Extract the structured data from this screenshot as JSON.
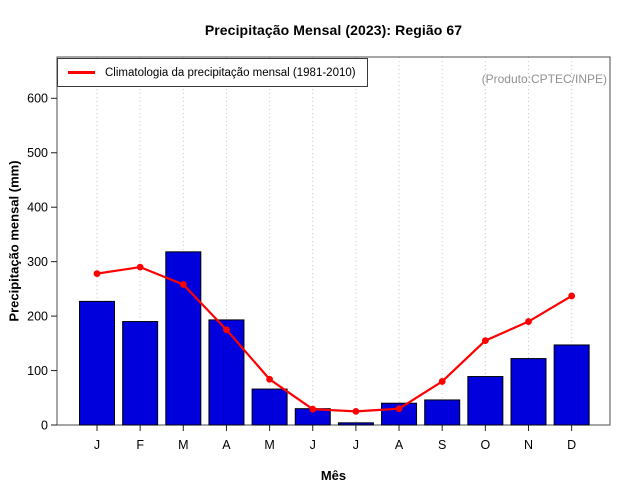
{
  "chart_data": {
    "type": "bar",
    "title": "Precipitação Mensal (2023): Região 67",
    "xlabel": "Mês",
    "ylabel": "Precipitação mensal (mm)",
    "annotation": "(Produto:CPTEC/INPE)",
    "categories": [
      "J",
      "F",
      "M",
      "A",
      "M",
      "J",
      "J",
      "A",
      "S",
      "O",
      "N",
      "D"
    ],
    "series": [
      {
        "name": "Precipitação mensal 2023",
        "type": "bar",
        "color": "#0000dd",
        "outline": "#000000",
        "values": [
          227,
          190,
          318,
          193,
          66,
          30,
          4,
          40,
          46,
          89,
          122,
          147
        ]
      },
      {
        "name": "Climatologia da precipitação mensal (1981-2010)",
        "type": "line",
        "color": "#ff0000",
        "marker": "circle",
        "values": [
          278,
          290,
          258,
          175,
          84,
          29,
          25,
          30,
          80,
          155,
          190,
          237
        ]
      }
    ],
    "ylim": [
      0,
      600
    ],
    "yticks": [
      0,
      100,
      200,
      300,
      400,
      500,
      600
    ],
    "grid": "vertical-dotted",
    "gridline_color": "#c9c9c9",
    "box_color": "#4d4d4d",
    "legend_position": "top-left"
  }
}
